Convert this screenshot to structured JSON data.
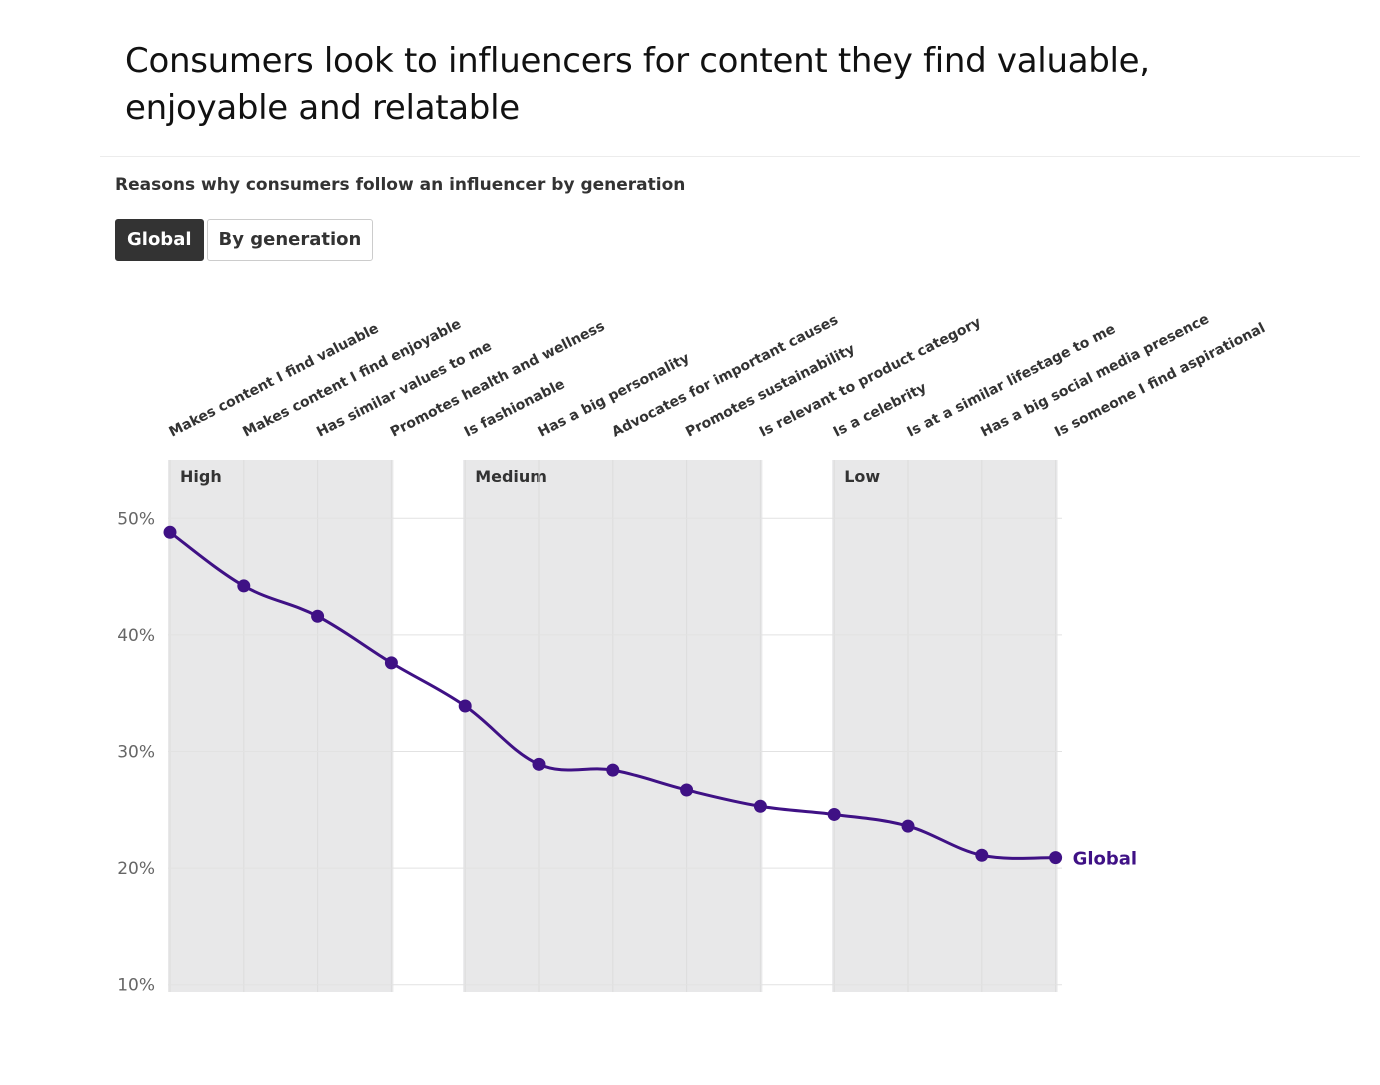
{
  "headline": "Consumers look to influencers for content they find valuable, enjoyable and relatable",
  "subtitle": "Reasons why consumers follow an influencer by generation",
  "toggle": {
    "options": [
      "Global",
      "By generation"
    ],
    "selected": "Global"
  },
  "colors": {
    "series": "#3f1185",
    "band": "#e8e8e9",
    "grid": "#e2e2e2",
    "active_button": "#333333"
  },
  "chart_data": {
    "type": "line",
    "title": "Reasons why consumers follow an influencer by generation",
    "categories": [
      "Makes content I find valuable",
      "Makes content I find enjoyable",
      "Has similar values to me",
      "Promotes health and wellness",
      "Is fashionable",
      "Has a big personality",
      "Advocates for important causes",
      "Promotes sustainability",
      "Is relevant to product category",
      "Is a celebrity",
      "Is at a similar lifestage to me",
      "Has a big social media presence",
      "Is someone I find aspirational"
    ],
    "series": [
      {
        "name": "Global",
        "values": [
          48.8,
          44.2,
          41.6,
          37.6,
          33.9,
          28.9,
          28.4,
          26.7,
          25.3,
          24.6,
          23.6,
          21.1,
          20.9
        ]
      }
    ],
    "bands": [
      {
        "label": "High",
        "from": 0,
        "to": 3
      },
      {
        "label": "Medium",
        "from": 4,
        "to": 8
      },
      {
        "label": "Low",
        "from": 9,
        "to": 12
      }
    ],
    "ylim": [
      10,
      55
    ],
    "yticks": [
      10,
      20,
      30,
      40,
      50
    ],
    "ytick_labels": [
      "10%",
      "20%",
      "30%",
      "40%",
      "50%"
    ],
    "grid": true
  }
}
